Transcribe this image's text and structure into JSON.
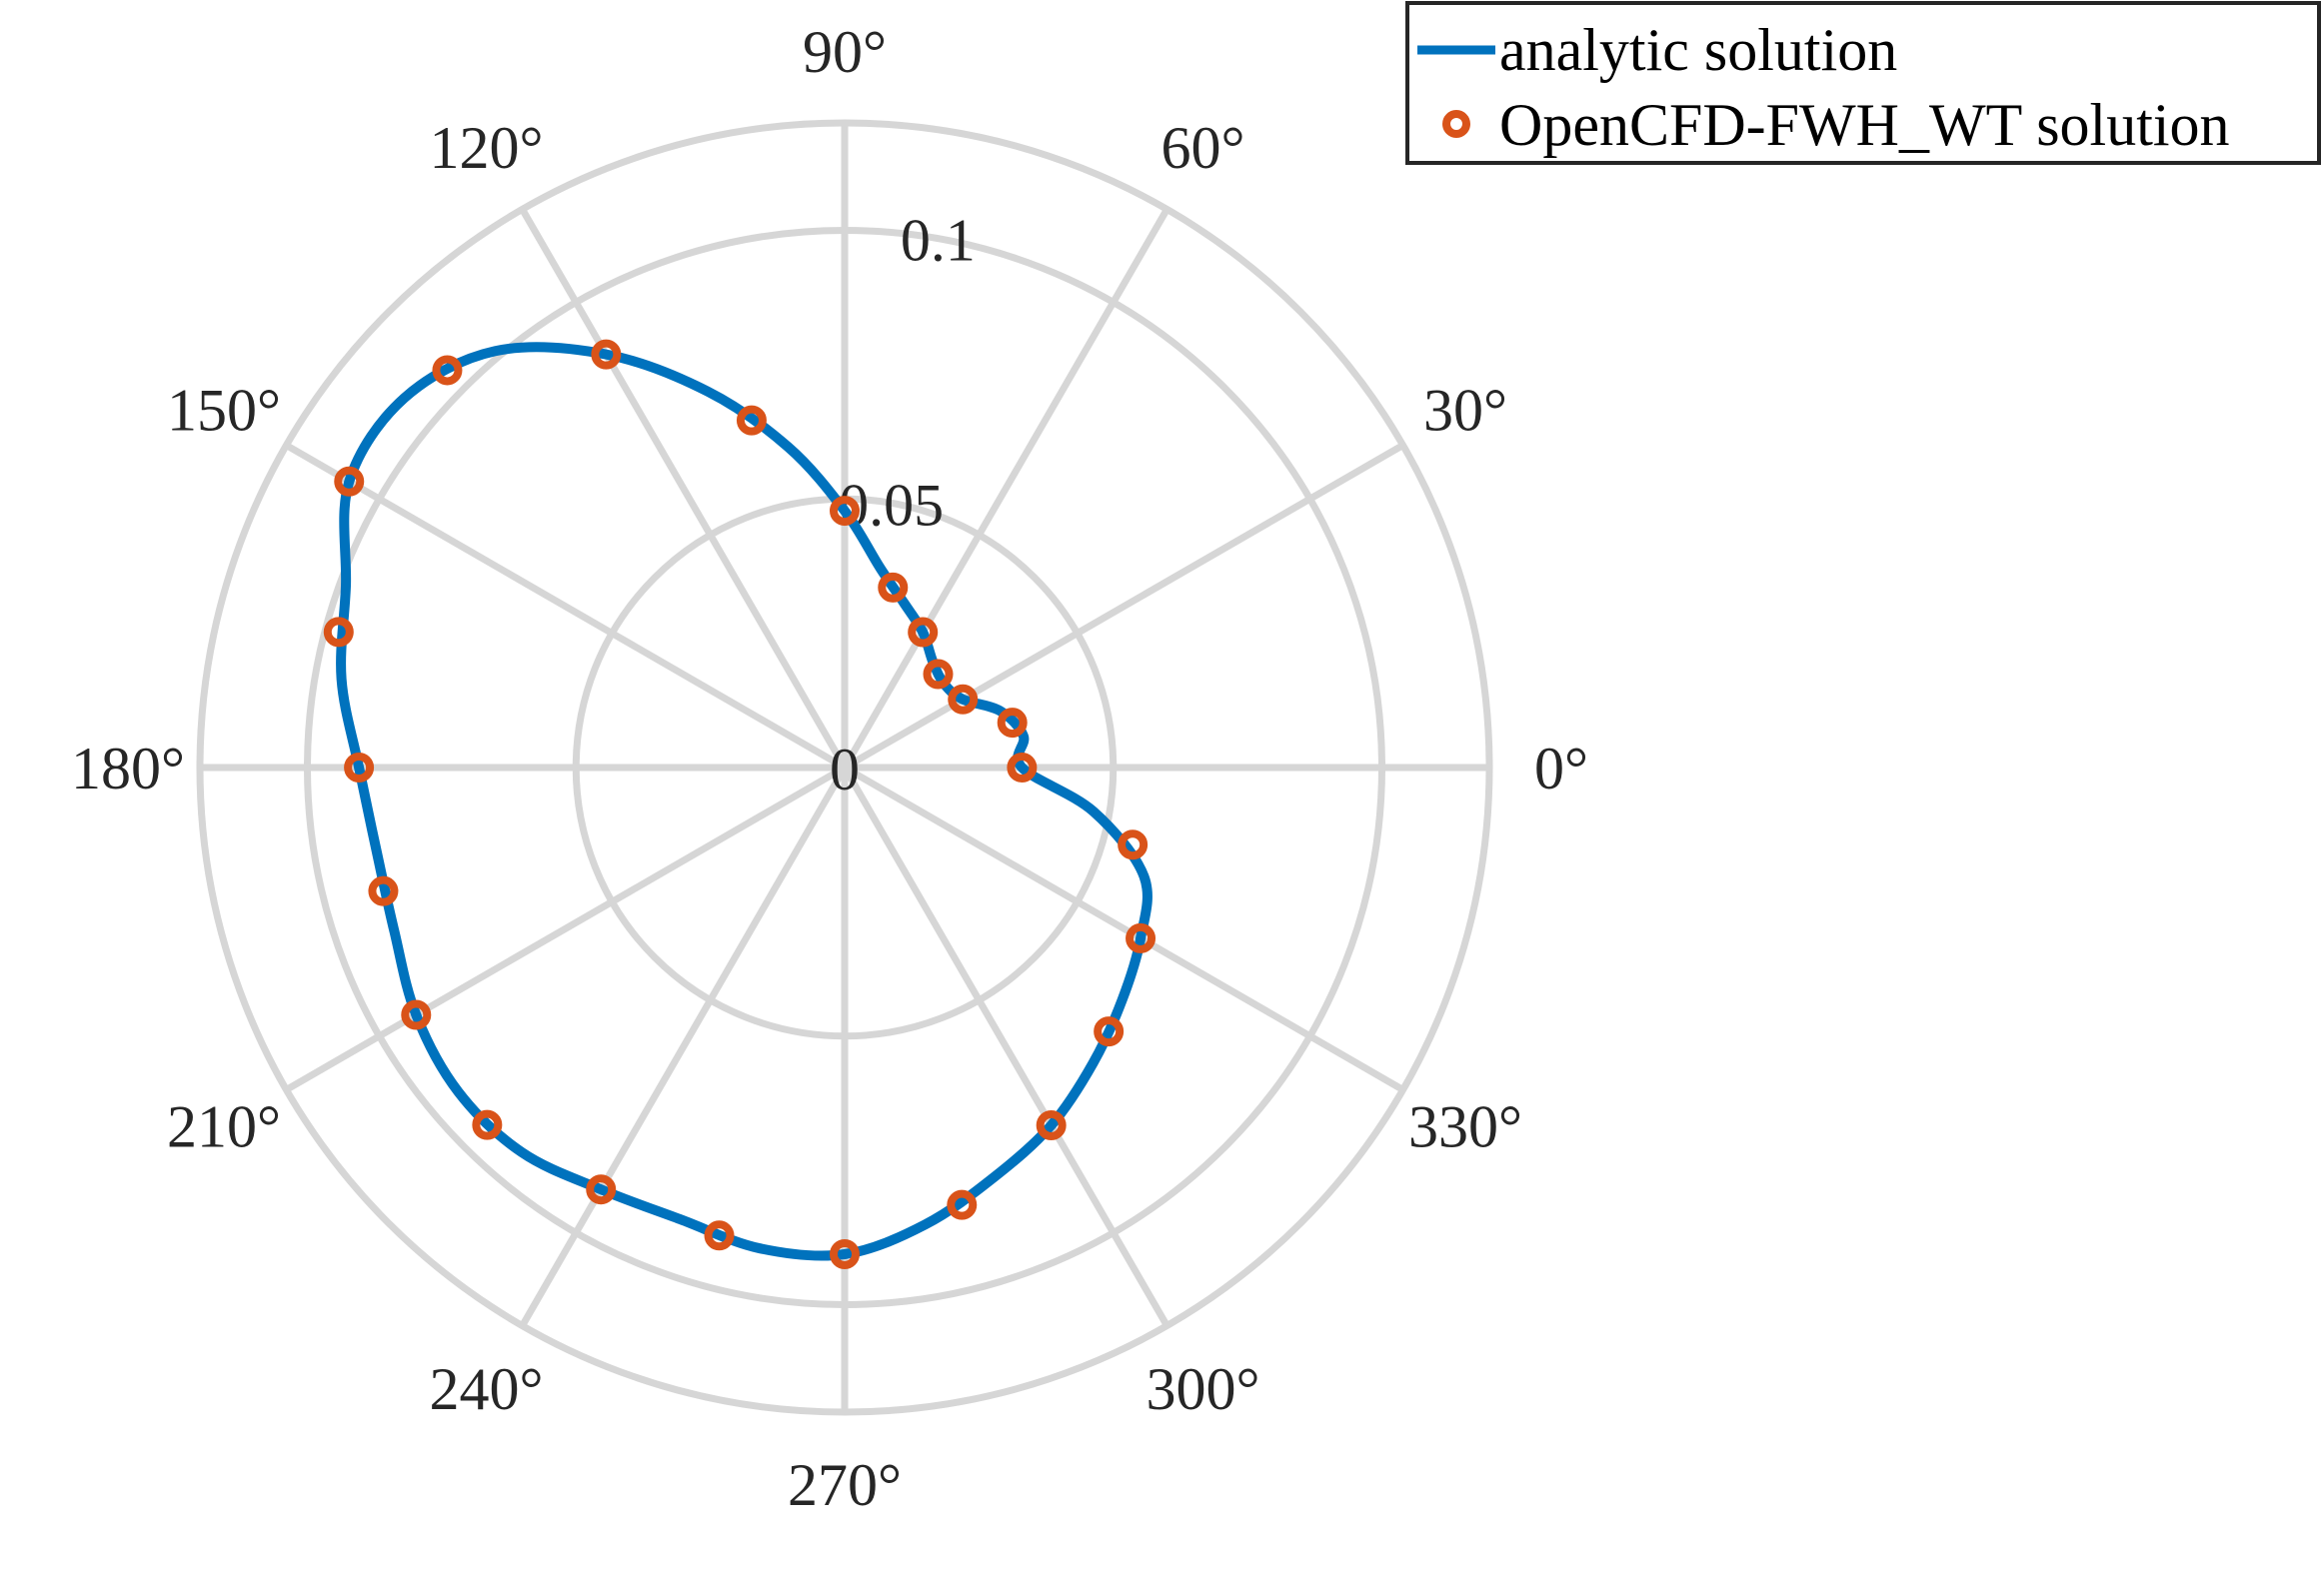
{
  "chart_data": {
    "type": "polar-line",
    "title": "",
    "theta_unit": "deg",
    "theta_ticks": [
      0,
      30,
      60,
      90,
      120,
      150,
      180,
      210,
      240,
      270,
      300,
      330
    ],
    "theta_tick_labels": [
      "0°",
      "30°",
      "60°",
      "90°",
      "120°",
      "150°",
      "180°",
      "210°",
      "240°",
      "270°",
      "300°",
      "330°"
    ],
    "r_lim": [
      0,
      0.12
    ],
    "r_ticks": [
      0,
      0.05,
      0.1
    ],
    "r_tick_labels": [
      "0",
      "0.05",
      "0.1"
    ],
    "grid": true,
    "legend_position": "top-right",
    "colors": {
      "analytic": "#0072BD",
      "numerical": "#D95319",
      "grid": "#d6d6d6"
    },
    "series": [
      {
        "name": "analytic solution",
        "style": "line",
        "theta": [
          0,
          10,
          20,
          30,
          40,
          50,
          60,
          70,
          80,
          90,
          100,
          110,
          120,
          130,
          140,
          150,
          160,
          170,
          180,
          190,
          200,
          210,
          220,
          230,
          240,
          250,
          260,
          270,
          280,
          290,
          300,
          310,
          320,
          330,
          340,
          350,
          360
        ],
        "r": [
          0.033,
          0.0338,
          0.0308,
          0.0254,
          0.0242,
          0.0256,
          0.0291,
          0.0325,
          0.0378,
          0.0478,
          0.0606,
          0.0745,
          0.0888,
          0.1012,
          0.107,
          0.1065,
          0.0988,
          0.0951,
          0.0904,
          0.0885,
          0.0892,
          0.0921,
          0.0939,
          0.0935,
          0.0907,
          0.0895,
          0.0909,
          0.0906,
          0.0864,
          0.0812,
          0.0769,
          0.0719,
          0.0674,
          0.0636,
          0.0593,
          0.047,
          0.033
        ]
      },
      {
        "name": "OpenCFD-FWH_WT solution",
        "style": "marker",
        "theta": [
          0,
          15,
          30,
          45,
          60,
          75,
          90,
          105,
          120,
          135,
          150,
          165,
          180,
          195,
          210,
          225,
          240,
          255,
          270,
          285,
          300,
          315,
          330,
          345
        ],
        "r": [
          0.033,
          0.0323,
          0.0254,
          0.0246,
          0.0291,
          0.0347,
          0.0478,
          0.0669,
          0.0888,
          0.1046,
          0.1065,
          0.0975,
          0.0904,
          0.0889,
          0.0921,
          0.0941,
          0.0907,
          0.0902,
          0.0906,
          0.0843,
          0.0769,
          0.0695,
          0.0636,
          0.0555
        ]
      }
    ]
  }
}
